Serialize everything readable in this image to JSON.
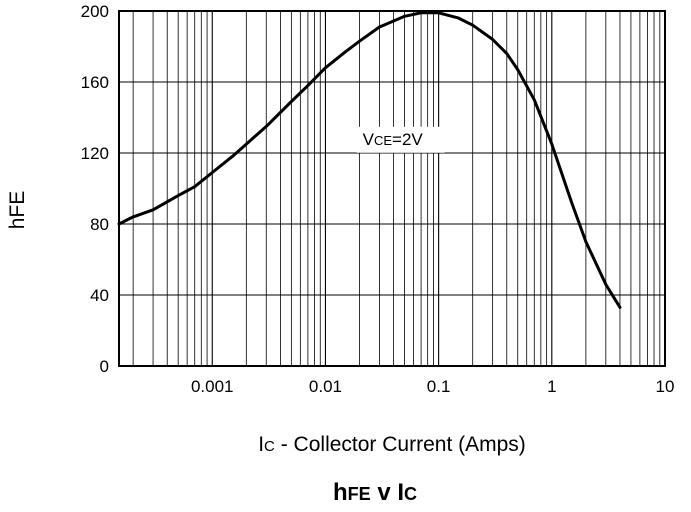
{
  "chart_data": {
    "type": "line",
    "title": {
      "main": "h",
      "main_sub": "FE",
      "mid": " v ",
      "end": "I",
      "end_sub": "C"
    },
    "xlabel": {
      "main": "I",
      "sub": "C",
      "rest": " - Collector Current (Amps)"
    },
    "ylabel": "hFE",
    "x_scale": "log",
    "xlim": [
      0.00015,
      10
    ],
    "ylim": [
      0,
      200
    ],
    "x_tick_values": [
      0.001,
      0.01,
      0.1,
      1,
      10
    ],
    "x_tick_labels": [
      "0.001",
      "0.01",
      "0.1",
      "1",
      "10"
    ],
    "y_tick_values": [
      0,
      40,
      80,
      120,
      160,
      200
    ],
    "y_tick_labels": [
      "0",
      "40",
      "80",
      "120",
      "160",
      "200"
    ],
    "grid": true,
    "annotation": {
      "main": "V",
      "sub": "CE",
      "rest": "=2V",
      "x": 0.1,
      "y": 128
    },
    "series": [
      {
        "x": [
          0.00015,
          0.0002,
          0.0003,
          0.0005,
          0.0007,
          0.001,
          0.0015,
          0.002,
          0.003,
          0.005,
          0.007,
          0.01,
          0.015,
          0.02,
          0.03,
          0.05,
          0.07,
          0.1,
          0.15,
          0.2,
          0.3,
          0.4,
          0.5,
          0.7,
          1.0,
          1.5,
          2.0,
          3.0,
          4.0
        ],
        "y": [
          80,
          84,
          88,
          96,
          101,
          109,
          118,
          125,
          135,
          149,
          158,
          168,
          177,
          183,
          191,
          197,
          199,
          199,
          196,
          192,
          184,
          176,
          167,
          150,
          125,
          92,
          70,
          46,
          33
        ]
      }
    ]
  }
}
